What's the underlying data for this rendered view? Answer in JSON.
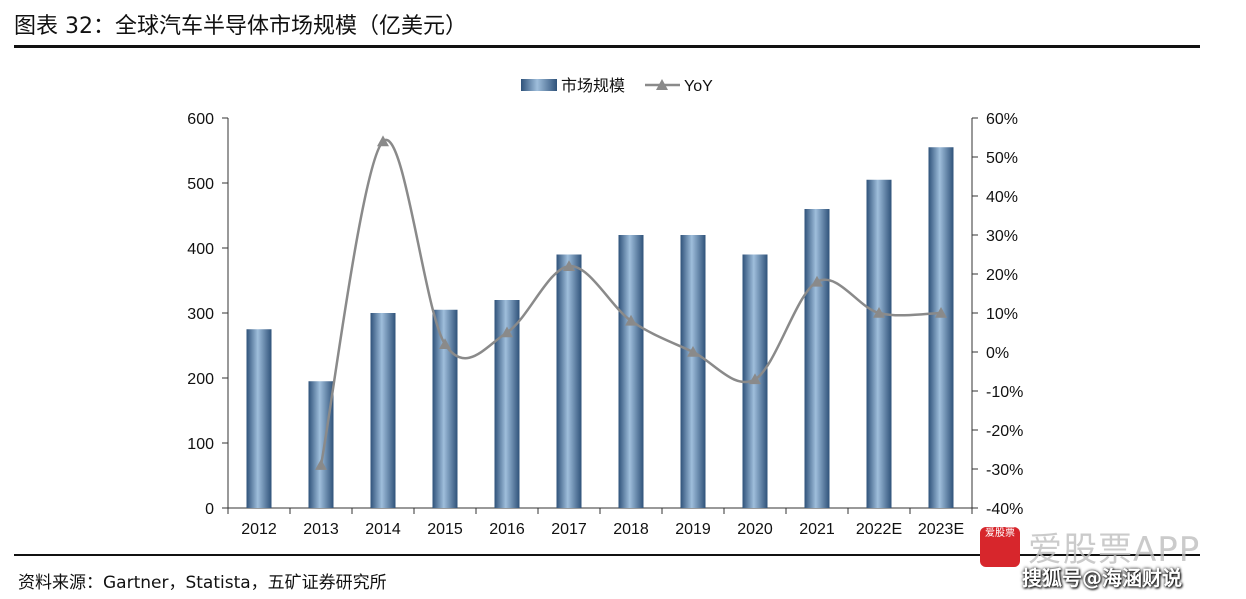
{
  "header": {
    "title": "图表 32：全球汽车半导体市场规模（亿美元）"
  },
  "footer": {
    "source": "资料来源：Gartner，Statista，五矿证券研究所"
  },
  "watermark": {
    "logo_text": "爱股票",
    "brand": "爱股票APP",
    "sub": "搜狐号@海涵财说"
  },
  "colors": {
    "bar": "#5b86b5",
    "bar_dark": "#2c4d73",
    "line": "#8a8a8a",
    "axis": "#333333"
  },
  "chart_data": {
    "type": "bar",
    "title": "",
    "categories": [
      "2012",
      "2013",
      "2014",
      "2015",
      "2016",
      "2017",
      "2018",
      "2019",
      "2020",
      "2021",
      "2022E",
      "2023E"
    ],
    "series": [
      {
        "name": "市场规模",
        "type": "bar",
        "axis": "left",
        "values": [
          275,
          195,
          300,
          305,
          320,
          390,
          420,
          420,
          390,
          460,
          505,
          555
        ]
      },
      {
        "name": "YoY",
        "type": "line",
        "axis": "right",
        "smooth": true,
        "marker": "triangle",
        "values": [
          null,
          -29,
          54,
          2,
          5,
          22,
          8,
          0,
          -7,
          18,
          10,
          10
        ]
      }
    ],
    "y_left": {
      "min": 0,
      "max": 600,
      "ticks": [
        "0",
        "100",
        "200",
        "300",
        "400",
        "500",
        "600"
      ]
    },
    "y_right": {
      "min": -40,
      "max": 60,
      "ticks": [
        "-40%",
        "-30%",
        "-20%",
        "-10%",
        "0%",
        "10%",
        "20%",
        "30%",
        "40%",
        "50%",
        "60%"
      ]
    },
    "legend": "top-center",
    "grid": false
  }
}
